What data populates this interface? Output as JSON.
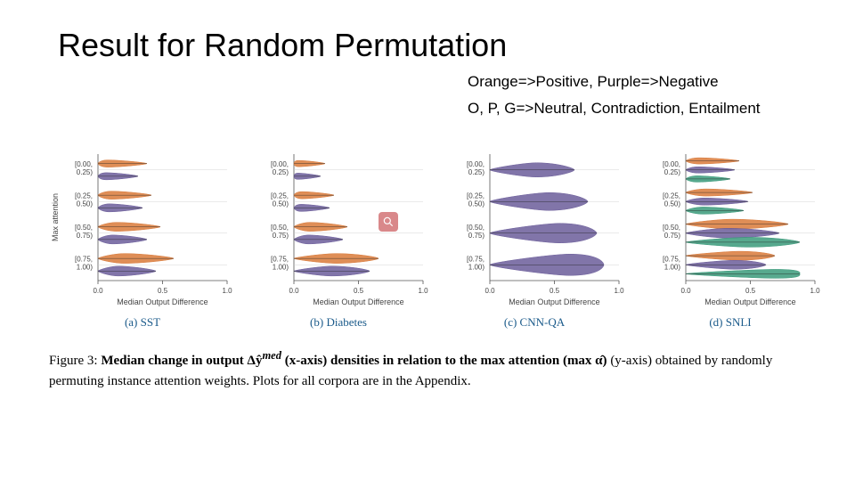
{
  "title": "Result for Random Permutation",
  "legend1": "Orange=>Positive, Purple=>Negative",
  "legend2": "O, P, G=>Neutral, Contradiction, Entailment",
  "caption_figlabel": "Figure 3: ",
  "caption_bold": "Median change in output ",
  "caption_math1": "Δŷ",
  "caption_sup1": "med",
  "caption_mid1": " (x-axis) densities in relation to the ",
  "caption_bold2": "max attention (max α̂)",
  "caption_mid2": " (y-axis) obtained by randomly permuting instance attention weights. Plots for all corpora are in the Appendix.",
  "subplots": [
    {
      "label": "(a) SST",
      "series_colors": [
        "#d97a3a",
        "#6b5d9a"
      ],
      "type": "violin"
    },
    {
      "label": "(b) Diabetes",
      "series_colors": [
        "#d97a3a",
        "#6b5d9a"
      ],
      "type": "violin"
    },
    {
      "label": "(c) CNN-QA",
      "series_colors": [
        "#6b5d9a"
      ],
      "type": "violin"
    },
    {
      "label": "(d) SNLI",
      "series_colors": [
        "#d97a3a",
        "#6b5d9a",
        "#3a9a7a"
      ],
      "type": "violin"
    }
  ],
  "y_axis_label": "Max attention",
  "y_ticks": [
    "[0.00,\n 0.25)",
    "[0.25,\n 0.50)",
    "[0.50,\n 0.75)",
    "[0.75,\n 1.00)"
  ],
  "x_axis_label": "Median Output Difference",
  "x_ticks": [
    "0.0",
    "0.5",
    "1.0"
  ],
  "colors": {
    "orange": "#d97a3a",
    "purple": "#6b5d9a",
    "green": "#3a9a7a",
    "axis": "#555555",
    "ticktext": "#444444",
    "watermark_bg": "#d9888a"
  },
  "chart_style": {
    "background": "#ffffff",
    "tick_fontsize": 8,
    "label_fontsize": 9,
    "sublabel_fontsize": 13,
    "xlim": [
      0.0,
      1.0
    ],
    "plot_type": "horizontal_violin",
    "rows_per_plot": 4
  }
}
